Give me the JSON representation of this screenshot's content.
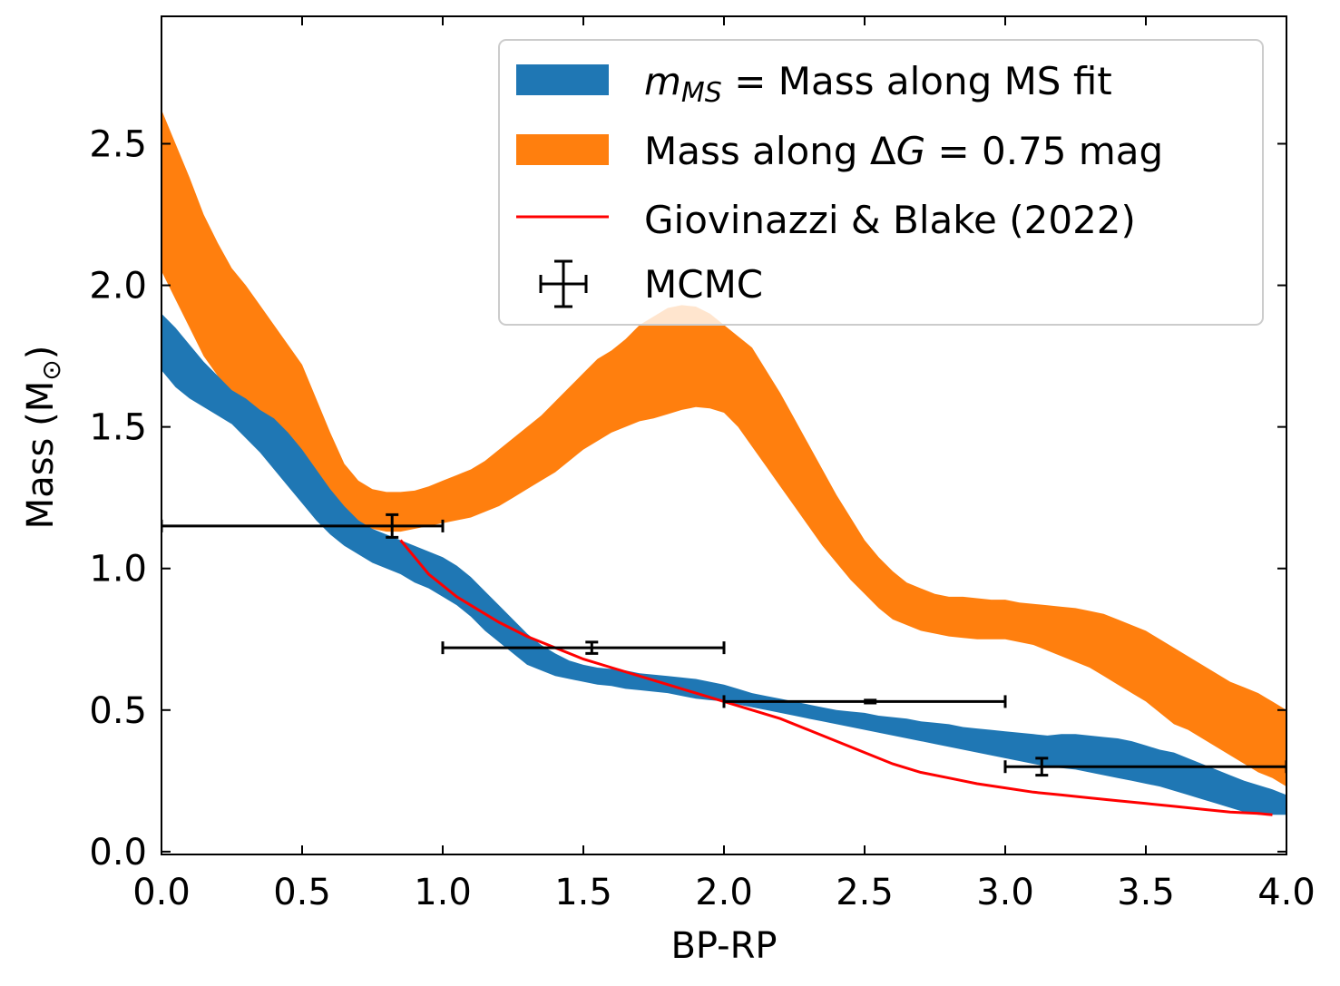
{
  "chart_data": {
    "type": "area",
    "xlabel": "BP-RP",
    "ylabel_main": "Mass (M",
    "ylabel_sub": "⊙",
    "ylabel_close": ")",
    "xlim": [
      0,
      4
    ],
    "ylim": [
      -0.01,
      2.95
    ],
    "xticks": [
      0.0,
      0.5,
      1.0,
      1.5,
      2.0,
      2.5,
      3.0,
      3.5,
      4.0
    ],
    "xtick_labels": [
      "0.0",
      "0.5",
      "1.0",
      "1.5",
      "2.0",
      "2.5",
      "3.0",
      "3.5",
      "4.0"
    ],
    "yticks": [
      0.0,
      0.5,
      1.0,
      1.5,
      2.0,
      2.5
    ],
    "ytick_labels": [
      "0.0",
      "0.5",
      "1.0",
      "1.5",
      "2.0",
      "2.5"
    ],
    "legend_position": "top-right",
    "colors": {
      "ms_band": "#1f77b4",
      "dg_band": "#ff7f0e",
      "dg_band_light": "#ffe3c6",
      "giovinazzi": "#ff0000",
      "mcmc": "#000000"
    },
    "legend": [
      {
        "name": "ms",
        "prefix": "m",
        "sub": "MS",
        "text": " = Mass along MS fit"
      },
      {
        "name": "dg",
        "text1": "Mass along Δ",
        "italic": "G",
        "text2": " = 0.75 mag"
      },
      {
        "name": "gb",
        "text": "Giovinazzi & Blake (2022)"
      },
      {
        "name": "mcmc",
        "text": "MCMC"
      }
    ],
    "series": [
      {
        "name": "m_MS = Mass along MS fit",
        "x": [
          0,
          0.05,
          0.1,
          0.15,
          0.2,
          0.25,
          0.3,
          0.35,
          0.4,
          0.45,
          0.5,
          0.55,
          0.6,
          0.65,
          0.7,
          0.75,
          0.8,
          0.85,
          0.9,
          0.95,
          1.0,
          1.05,
          1.1,
          1.15,
          1.2,
          1.25,
          1.3,
          1.35,
          1.4,
          1.45,
          1.5,
          1.55,
          1.6,
          1.65,
          1.7,
          1.75,
          1.8,
          1.85,
          1.9,
          1.95,
          2.0,
          2.05,
          2.1,
          2.15,
          2.2,
          2.25,
          2.3,
          2.35,
          2.4,
          2.45,
          2.5,
          2.55,
          2.6,
          2.65,
          2.7,
          2.75,
          2.8,
          2.85,
          2.9,
          2.95,
          3.0,
          3.05,
          3.1,
          3.15,
          3.2,
          3.25,
          3.3,
          3.35,
          3.4,
          3.45,
          3.5,
          3.55,
          3.6,
          3.65,
          3.7,
          3.75,
          3.8,
          3.85,
          3.9,
          3.95,
          4.0
        ],
        "lower": [
          1.7,
          1.64,
          1.6,
          1.57,
          1.54,
          1.51,
          1.46,
          1.41,
          1.35,
          1.29,
          1.23,
          1.17,
          1.12,
          1.08,
          1.05,
          1.02,
          1.0,
          0.98,
          0.95,
          0.93,
          0.9,
          0.87,
          0.83,
          0.78,
          0.74,
          0.7,
          0.66,
          0.64,
          0.62,
          0.61,
          0.6,
          0.59,
          0.585,
          0.575,
          0.57,
          0.565,
          0.56,
          0.55,
          0.54,
          0.535,
          0.53,
          0.52,
          0.51,
          0.5,
          0.49,
          0.48,
          0.47,
          0.46,
          0.45,
          0.44,
          0.43,
          0.42,
          0.41,
          0.4,
          0.39,
          0.38,
          0.37,
          0.36,
          0.35,
          0.34,
          0.33,
          0.32,
          0.31,
          0.3,
          0.295,
          0.29,
          0.28,
          0.27,
          0.26,
          0.25,
          0.24,
          0.23,
          0.215,
          0.2,
          0.185,
          0.17,
          0.155,
          0.14,
          0.13,
          0.13,
          0.13
        ],
        "upper": [
          1.9,
          1.85,
          1.79,
          1.73,
          1.68,
          1.63,
          1.6,
          1.56,
          1.53,
          1.48,
          1.42,
          1.35,
          1.28,
          1.22,
          1.17,
          1.14,
          1.12,
          1.1,
          1.08,
          1.06,
          1.04,
          1.01,
          0.97,
          0.92,
          0.87,
          0.82,
          0.77,
          0.73,
          0.7,
          0.675,
          0.66,
          0.65,
          0.645,
          0.64,
          0.63,
          0.625,
          0.62,
          0.615,
          0.61,
          0.6,
          0.59,
          0.575,
          0.56,
          0.55,
          0.54,
          0.53,
          0.52,
          0.51,
          0.5,
          0.495,
          0.49,
          0.48,
          0.475,
          0.47,
          0.46,
          0.455,
          0.45,
          0.44,
          0.435,
          0.43,
          0.425,
          0.42,
          0.415,
          0.41,
          0.415,
          0.415,
          0.41,
          0.405,
          0.4,
          0.39,
          0.375,
          0.36,
          0.35,
          0.33,
          0.31,
          0.29,
          0.27,
          0.25,
          0.235,
          0.22,
          0.2
        ]
      },
      {
        "name": "Mass along ΔG = 0.75 mag",
        "x": [
          0,
          0.05,
          0.1,
          0.15,
          0.2,
          0.25,
          0.3,
          0.35,
          0.4,
          0.45,
          0.5,
          0.55,
          0.6,
          0.65,
          0.7,
          0.75,
          0.8,
          0.85,
          0.9,
          0.95,
          1.0,
          1.05,
          1.1,
          1.15,
          1.2,
          1.25,
          1.3,
          1.35,
          1.4,
          1.45,
          1.5,
          1.55,
          1.6,
          1.65,
          1.7,
          1.75,
          1.8,
          1.85,
          1.9,
          1.95,
          2.0,
          2.05,
          2.1,
          2.15,
          2.2,
          2.25,
          2.3,
          2.35,
          2.4,
          2.45,
          2.5,
          2.55,
          2.6,
          2.65,
          2.7,
          2.75,
          2.8,
          2.85,
          2.9,
          2.95,
          3.0,
          3.05,
          3.1,
          3.15,
          3.2,
          3.25,
          3.3,
          3.35,
          3.4,
          3.45,
          3.5,
          3.55,
          3.6,
          3.65,
          3.7,
          3.75,
          3.8,
          3.85,
          3.9,
          3.95,
          4.0
        ],
        "lower": [
          2.05,
          1.95,
          1.85,
          1.75,
          1.68,
          1.62,
          1.58,
          1.55,
          1.52,
          1.46,
          1.4,
          1.33,
          1.26,
          1.2,
          1.16,
          1.14,
          1.13,
          1.13,
          1.14,
          1.15,
          1.16,
          1.17,
          1.18,
          1.2,
          1.22,
          1.25,
          1.28,
          1.31,
          1.34,
          1.38,
          1.42,
          1.45,
          1.48,
          1.5,
          1.52,
          1.53,
          1.545,
          1.56,
          1.57,
          1.565,
          1.55,
          1.5,
          1.43,
          1.36,
          1.29,
          1.22,
          1.15,
          1.08,
          1.02,
          0.96,
          0.91,
          0.86,
          0.82,
          0.8,
          0.78,
          0.77,
          0.76,
          0.755,
          0.75,
          0.75,
          0.75,
          0.74,
          0.73,
          0.71,
          0.69,
          0.67,
          0.65,
          0.62,
          0.59,
          0.56,
          0.53,
          0.49,
          0.45,
          0.43,
          0.4,
          0.37,
          0.34,
          0.31,
          0.28,
          0.26,
          0.23
        ],
        "upper": [
          2.62,
          2.5,
          2.38,
          2.25,
          2.15,
          2.06,
          2.0,
          1.93,
          1.86,
          1.79,
          1.72,
          1.6,
          1.48,
          1.37,
          1.31,
          1.28,
          1.27,
          1.27,
          1.275,
          1.29,
          1.31,
          1.33,
          1.35,
          1.38,
          1.42,
          1.46,
          1.5,
          1.54,
          1.59,
          1.64,
          1.69,
          1.74,
          1.77,
          1.81,
          1.86,
          1.89,
          1.92,
          1.93,
          1.925,
          1.9,
          1.86,
          1.82,
          1.78,
          1.7,
          1.62,
          1.53,
          1.44,
          1.35,
          1.26,
          1.18,
          1.1,
          1.04,
          0.99,
          0.95,
          0.93,
          0.91,
          0.9,
          0.9,
          0.895,
          0.89,
          0.89,
          0.88,
          0.875,
          0.87,
          0.865,
          0.86,
          0.85,
          0.84,
          0.82,
          0.8,
          0.78,
          0.75,
          0.72,
          0.69,
          0.66,
          0.63,
          0.6,
          0.58,
          0.56,
          0.53,
          0.5
        ]
      },
      {
        "name": "Giovinazzi & Blake (2022)",
        "x": [
          0.85,
          0.9,
          0.95,
          1.0,
          1.05,
          1.1,
          1.15,
          1.2,
          1.3,
          1.4,
          1.5,
          1.6,
          1.7,
          1.8,
          1.9,
          2.0,
          2.1,
          2.2,
          2.3,
          2.4,
          2.5,
          2.6,
          2.7,
          2.8,
          2.9,
          3.0,
          3.1,
          3.2,
          3.3,
          3.4,
          3.5,
          3.6,
          3.7,
          3.8,
          3.9,
          3.95
        ],
        "y": [
          1.1,
          1.04,
          0.98,
          0.94,
          0.9,
          0.87,
          0.84,
          0.81,
          0.76,
          0.72,
          0.68,
          0.65,
          0.62,
          0.59,
          0.56,
          0.53,
          0.5,
          0.47,
          0.43,
          0.39,
          0.35,
          0.31,
          0.28,
          0.26,
          0.24,
          0.225,
          0.21,
          0.2,
          0.19,
          0.18,
          0.17,
          0.16,
          0.15,
          0.14,
          0.135,
          0.13
        ]
      }
    ],
    "mcmc_points": [
      {
        "x": 0.82,
        "y": 1.15,
        "xerr_low": 0.82,
        "xerr_high": 0.18,
        "yerr_low": 0.04,
        "yerr_high": 0.04
      },
      {
        "x": 1.53,
        "y": 0.72,
        "xerr_low": 0.53,
        "xerr_high": 0.47,
        "yerr_low": 0.02,
        "yerr_high": 0.02
      },
      {
        "x": 2.52,
        "y": 0.53,
        "xerr_low": 0.52,
        "xerr_high": 0.48,
        "yerr_low": 0.005,
        "yerr_high": 0.005
      },
      {
        "x": 3.13,
        "y": 0.3,
        "xerr_low": 0.13,
        "xerr_high": 0.87,
        "yerr_low": 0.03,
        "yerr_high": 0.03
      }
    ]
  }
}
